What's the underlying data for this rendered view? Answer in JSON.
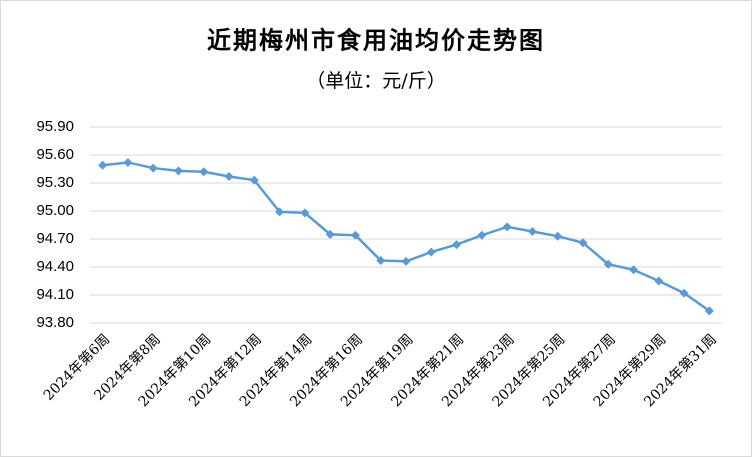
{
  "chart_data": {
    "type": "line",
    "title": "近期梅州市食用油均价走势图",
    "subtitle": "（单位：元/斤）",
    "categories": [
      "2024年第6周",
      null,
      "2024年第8周",
      null,
      "2024年第10周",
      null,
      "2024年第12周",
      null,
      "2024年第14周",
      null,
      "2024年第16周",
      null,
      "2024年第19周",
      null,
      "2024年第21周",
      null,
      "2024年第23周",
      null,
      "2024年第25周",
      null,
      "2024年第27周",
      null,
      "2024年第29周",
      null,
      "2024年第31周"
    ],
    "values": [
      95.49,
      95.52,
      95.46,
      95.43,
      95.42,
      95.37,
      95.33,
      94.99,
      94.98,
      94.75,
      94.74,
      94.47,
      94.46,
      94.56,
      94.64,
      94.74,
      94.83,
      94.78,
      94.73,
      94.66,
      94.43,
      94.37,
      94.25,
      94.12,
      93.93
    ],
    "color": "#5b9bd5",
    "ylim": [
      93.8,
      95.9
    ],
    "yticks": [
      {
        "value": 93.8,
        "label": "93.80"
      },
      {
        "value": 94.1,
        "label": "94.10"
      },
      {
        "value": 94.4,
        "label": "94.40"
      },
      {
        "value": 94.7,
        "label": "94.70"
      },
      {
        "value": 95.0,
        "label": "95.00"
      },
      {
        "value": 95.3,
        "label": "95.30"
      },
      {
        "value": 95.6,
        "label": "95.60"
      },
      {
        "value": 95.9,
        "label": "95.90"
      }
    ],
    "grid": true
  }
}
